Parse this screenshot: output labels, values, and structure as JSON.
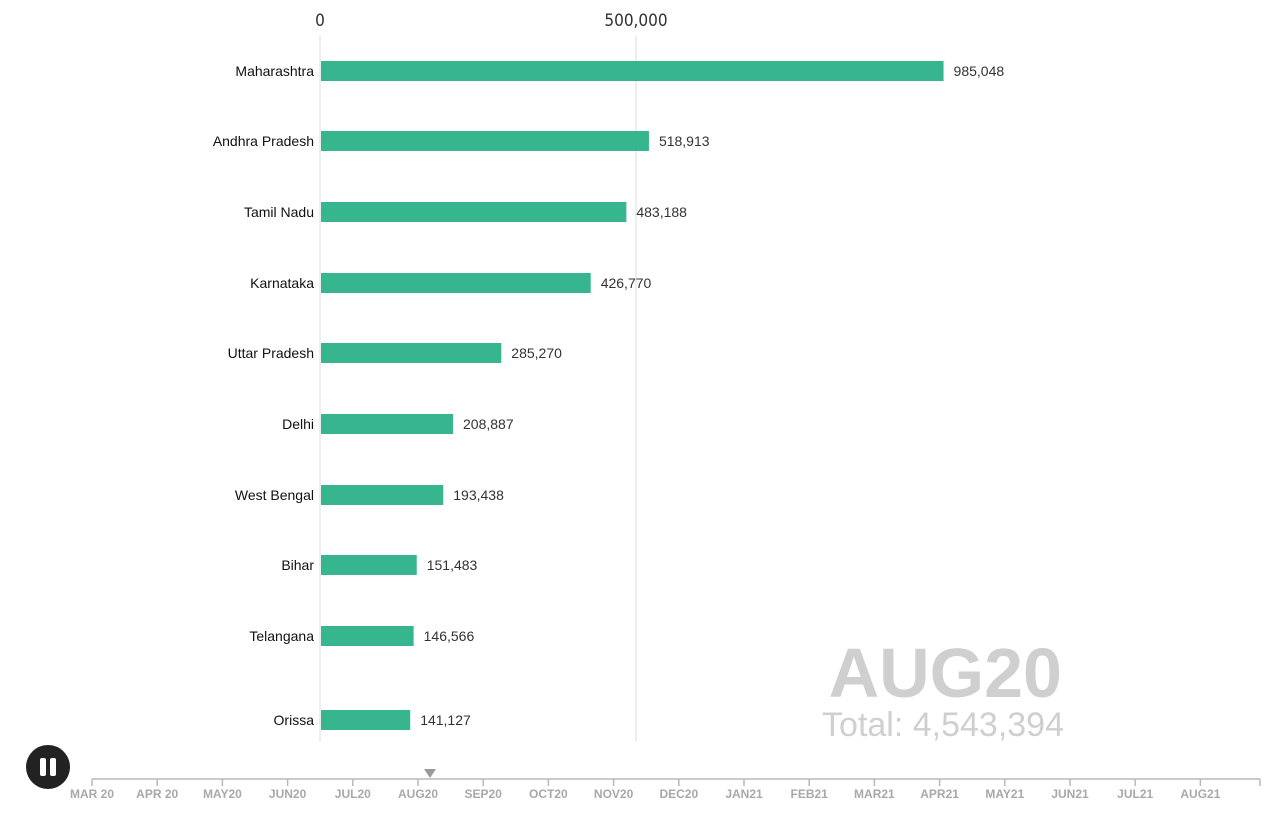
{
  "chart_data": {
    "type": "bar",
    "orientation": "horizontal",
    "categories": [
      "Maharashtra",
      "Andhra Pradesh",
      "Tamil Nadu",
      "Karnataka",
      "Uttar Pradesh",
      "Delhi",
      "West Bengal",
      "Bihar",
      "Telangana",
      "Orissa"
    ],
    "values": [
      985048,
      518913,
      483188,
      426770,
      285270,
      208887,
      193438,
      151483,
      146566,
      141127
    ],
    "value_labels": [
      "985,048",
      "518,913",
      "483,188",
      "426,770",
      "285,270",
      "208,887",
      "193,438",
      "151,483",
      "146,566",
      "141,127"
    ],
    "x_ticks": [
      0,
      500000
    ],
    "x_tick_labels": [
      "0",
      "500,000"
    ],
    "xlim": [
      0,
      1000000
    ],
    "bar_color": "#36b58e",
    "grid": true,
    "grid_color": "#dddddd"
  },
  "period": {
    "label": "AUG20",
    "total": "Total: 4,543,394"
  },
  "timeline": {
    "labels": [
      "MAR 20",
      "APR 20",
      "MAY20",
      "JUN20",
      "JUL20",
      "AUG20",
      "SEP20",
      "OCT20",
      "NOV20",
      "DEC20",
      "JAN21",
      "FEB21",
      "MAR21",
      "APR21",
      "MAY21",
      "JUN21",
      "JUL21",
      "AUG21"
    ],
    "current_index": 5,
    "marker_icon": "triangle-down-icon"
  },
  "controls": {
    "play_pause_icon": "pause-icon"
  }
}
